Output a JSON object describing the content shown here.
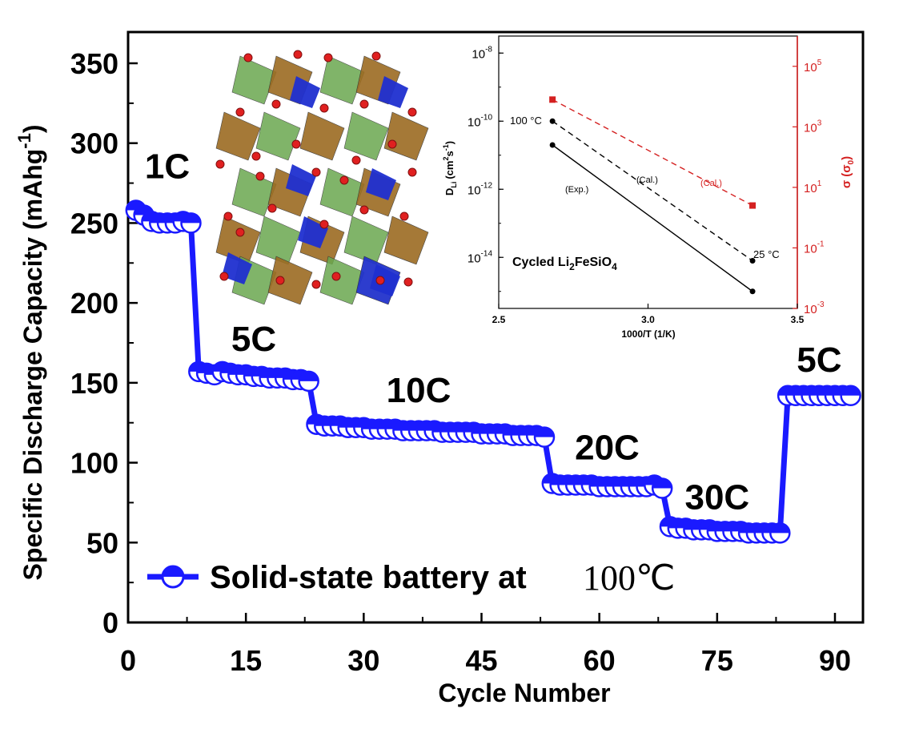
{
  "chart_data": [
    {
      "type": "scatter",
      "title": "",
      "xlabel": "Cycle Number",
      "ylabel": "Specific Discharge Capacity (mAhg",
      "ylabel_sup": "-1",
      "ylabel_close": ")",
      "xlim": [
        0,
        93
      ],
      "ylim": [
        0,
        370
      ],
      "xticks": [
        0,
        15,
        30,
        45,
        60,
        75,
        90
      ],
      "yticks": [
        0,
        50,
        100,
        150,
        200,
        250,
        300,
        350
      ],
      "legend": {
        "label": "Solid-state battery at",
        "temp": "100℃",
        "color": "#1a1aff"
      },
      "rate_labels": [
        {
          "text": "1C",
          "x": 5,
          "y": 278
        },
        {
          "text": "5C",
          "x": 16,
          "y": 170
        },
        {
          "text": "10C",
          "x": 37,
          "y": 138
        },
        {
          "text": "20C",
          "x": 61,
          "y": 102
        },
        {
          "text": "30C",
          "x": 75,
          "y": 71
        },
        {
          "text": "5C",
          "x": 88,
          "y": 157
        }
      ],
      "series": [
        {
          "name": "Solid-state battery at 100℃",
          "color": "#1a1aff",
          "x": [
            1,
            2,
            3,
            4,
            5,
            6,
            7,
            8,
            9,
            10,
            11,
            12,
            13,
            14,
            15,
            16,
            17,
            18,
            19,
            20,
            21,
            22,
            23,
            24,
            25,
            26,
            27,
            28,
            29,
            30,
            31,
            32,
            33,
            34,
            35,
            36,
            37,
            38,
            39,
            40,
            41,
            42,
            43,
            44,
            45,
            46,
            47,
            48,
            49,
            50,
            51,
            52,
            53,
            54,
            55,
            56,
            57,
            58,
            59,
            60,
            61,
            62,
            63,
            64,
            65,
            66,
            67,
            68,
            69,
            70,
            71,
            72,
            73,
            74,
            75,
            76,
            77,
            78,
            79,
            80,
            81,
            82,
            83,
            84,
            85,
            86,
            87,
            88,
            89,
            90,
            91,
            92
          ],
          "y": [
            258,
            255,
            251,
            250,
            250,
            250,
            251,
            250,
            157,
            156,
            155,
            157,
            156,
            155,
            155,
            154,
            154,
            153,
            153,
            153,
            152,
            152,
            151,
            124,
            123,
            123,
            123,
            122,
            122,
            122,
            121,
            121,
            121,
            121,
            120,
            120,
            120,
            120,
            120,
            119,
            119,
            119,
            119,
            119,
            118,
            118,
            118,
            118,
            117,
            117,
            117,
            117,
            116,
            87,
            86,
            86,
            86,
            86,
            86,
            85,
            85,
            85,
            85,
            85,
            85,
            85,
            86,
            84,
            60,
            59,
            59,
            58,
            58,
            58,
            57,
            57,
            57,
            57,
            56,
            56,
            56,
            56,
            56,
            142,
            142,
            142,
            142,
            142,
            142,
            142,
            142,
            142
          ]
        }
      ]
    },
    {
      "type": "line",
      "title": "Cycled Li",
      "title_sub1": "2",
      "title_mid": "FeSiO",
      "title_sub2": "4",
      "xlabel": "1000/T (1/K)",
      "ylabel_left": "D",
      "ylabel_left_sub": "Li",
      "ylabel_left_unit": "(cm",
      "ylabel_left_sup1": "2",
      "ylabel_left_mid": "s",
      "ylabel_left_sup2": "-1",
      "ylabel_left_close": ")",
      "ylabel_right": "σ (σ",
      "ylabel_right_sub": "0",
      "ylabel_right_close": ")",
      "xlim": [
        2.5,
        3.5
      ],
      "xticks": [
        "2.5",
        "3.0",
        "3.5"
      ],
      "ylim_left_log": [
        -15.5,
        -7.5
      ],
      "yticks_left": [
        {
          "exp": "-8",
          "v": -8
        },
        {
          "exp": "-10",
          "v": -10
        },
        {
          "exp": "-12",
          "v": -12
        },
        {
          "exp": "-14",
          "v": -14
        }
      ],
      "ylim_right_log": [
        -3,
        6
      ],
      "yticks_right": [
        {
          "exp": "5",
          "v": 5
        },
        {
          "exp": "3",
          "v": 3
        },
        {
          "exp": "1",
          "v": 1
        },
        {
          "exp": "-1",
          "v": -1
        },
        {
          "exp": "-3",
          "v": -3
        }
      ],
      "temp_labels": {
        "hot": "100 °C",
        "cold": "25 °C"
      },
      "series": [
        {
          "name": "(Exp.)",
          "axis": "left",
          "style": "solid",
          "color": "#000000",
          "x": [
            2.68,
            3.35
          ],
          "y_log": [
            -10.7,
            -15.0
          ]
        },
        {
          "name": "(Cal.)",
          "axis": "left",
          "style": "dashed",
          "color": "#000000",
          "x": [
            2.68,
            3.35
          ],
          "y_log": [
            -10.0,
            -14.1
          ]
        },
        {
          "name": "(Cal.)",
          "axis": "right",
          "style": "dashed",
          "color": "#d42020",
          "x": [
            2.68,
            3.35
          ],
          "y_log": [
            3.9,
            0.4
          ]
        }
      ]
    }
  ]
}
